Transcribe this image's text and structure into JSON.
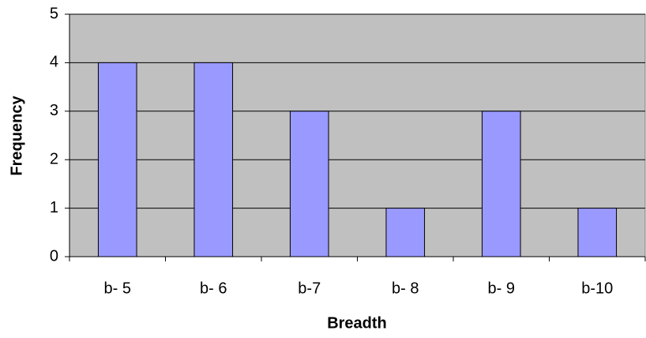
{
  "chart_data": {
    "type": "bar",
    "x_label": "Breadth",
    "y_label": "Frequency",
    "categories": [
      "b- 5",
      "b- 6",
      "b-7",
      "b- 8",
      "b- 9",
      "b-10"
    ],
    "values": [
      4,
      4,
      3,
      1,
      3,
      1
    ],
    "color": "#9999ff",
    "ylim": [
      0,
      5
    ],
    "yticks": [
      0,
      1,
      2,
      3,
      4,
      5
    ],
    "grid": true
  }
}
